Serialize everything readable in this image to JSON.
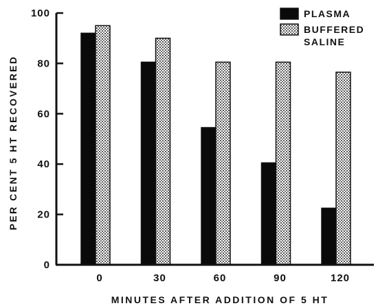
{
  "chart_data": {
    "type": "bar",
    "title": "",
    "xlabel": "MINUTES AFTER ADDITION OF 5 HT",
    "ylabel": "PER CENT 5 HT RECOVERED",
    "categories": [
      "0",
      "30",
      "60",
      "90",
      "120"
    ],
    "ylim": [
      0,
      100
    ],
    "yticks": [
      "0",
      "20",
      "40",
      "60",
      "80",
      "100"
    ],
    "grid": false,
    "legend_position": "top-right",
    "series": [
      {
        "name": "PLASMA",
        "values": [
          92,
          80.5,
          54.5,
          40.5,
          22.5
        ],
        "color": "#0a0a0a",
        "pattern": "solid"
      },
      {
        "name": "BUFFERED SALINE",
        "legend_lines": [
          "BUFFERED",
          "SALINE"
        ],
        "values": [
          95,
          90,
          80.5,
          80.5,
          76.5
        ],
        "color": "#9a9a9a",
        "pattern": "stipple"
      }
    ]
  }
}
